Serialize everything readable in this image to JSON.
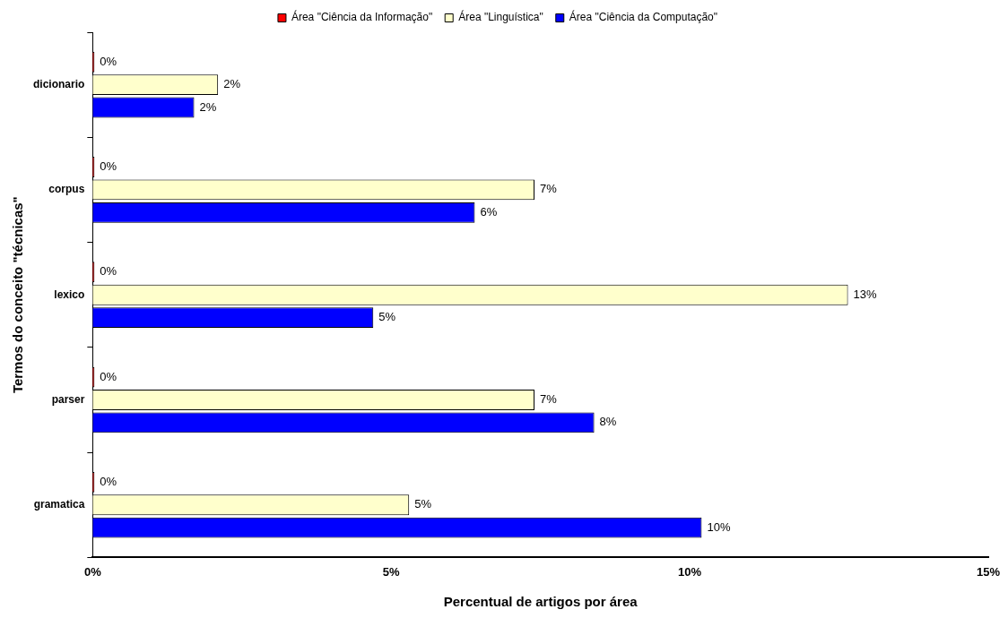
{
  "chart_data": {
    "type": "bar",
    "orientation": "horizontal",
    "xlabel": "Percentual de artigos por área",
    "ylabel": "Termos do conceito \"técnicas\"",
    "categories": [
      "dicionario",
      "corpus",
      "lexico",
      "parser",
      "gramatica"
    ],
    "series": [
      {
        "name": "Área \"Ciência da Informação\"",
        "color": "#ff0000",
        "values": [
          0,
          0,
          0,
          0,
          0
        ],
        "value_labels": [
          "0%",
          "0%",
          "0%",
          "0%",
          "0%"
        ]
      },
      {
        "name": "Área \"Linguística\"",
        "color": "#ffffcc",
        "values": [
          2.1,
          7.4,
          12.65,
          7.4,
          5.3
        ],
        "value_labels": [
          "2%",
          "7%",
          "13%",
          "7%",
          "5%"
        ]
      },
      {
        "name": "Área \"Ciência da Computação\"",
        "color": "#0000ff",
        "values": [
          1.7,
          6.4,
          4.7,
          8.4,
          10.2
        ],
        "value_labels": [
          "2%",
          "6%",
          "5%",
          "8%",
          "10%"
        ]
      }
    ],
    "xlim": [
      0,
      15
    ],
    "xticks": [
      {
        "value": 0,
        "label": "0%"
      },
      {
        "value": 5,
        "label": "5%"
      },
      {
        "value": 10,
        "label": "10%"
      },
      {
        "value": 15,
        "label": "15%"
      }
    ],
    "grid": false,
    "legend": "top"
  }
}
